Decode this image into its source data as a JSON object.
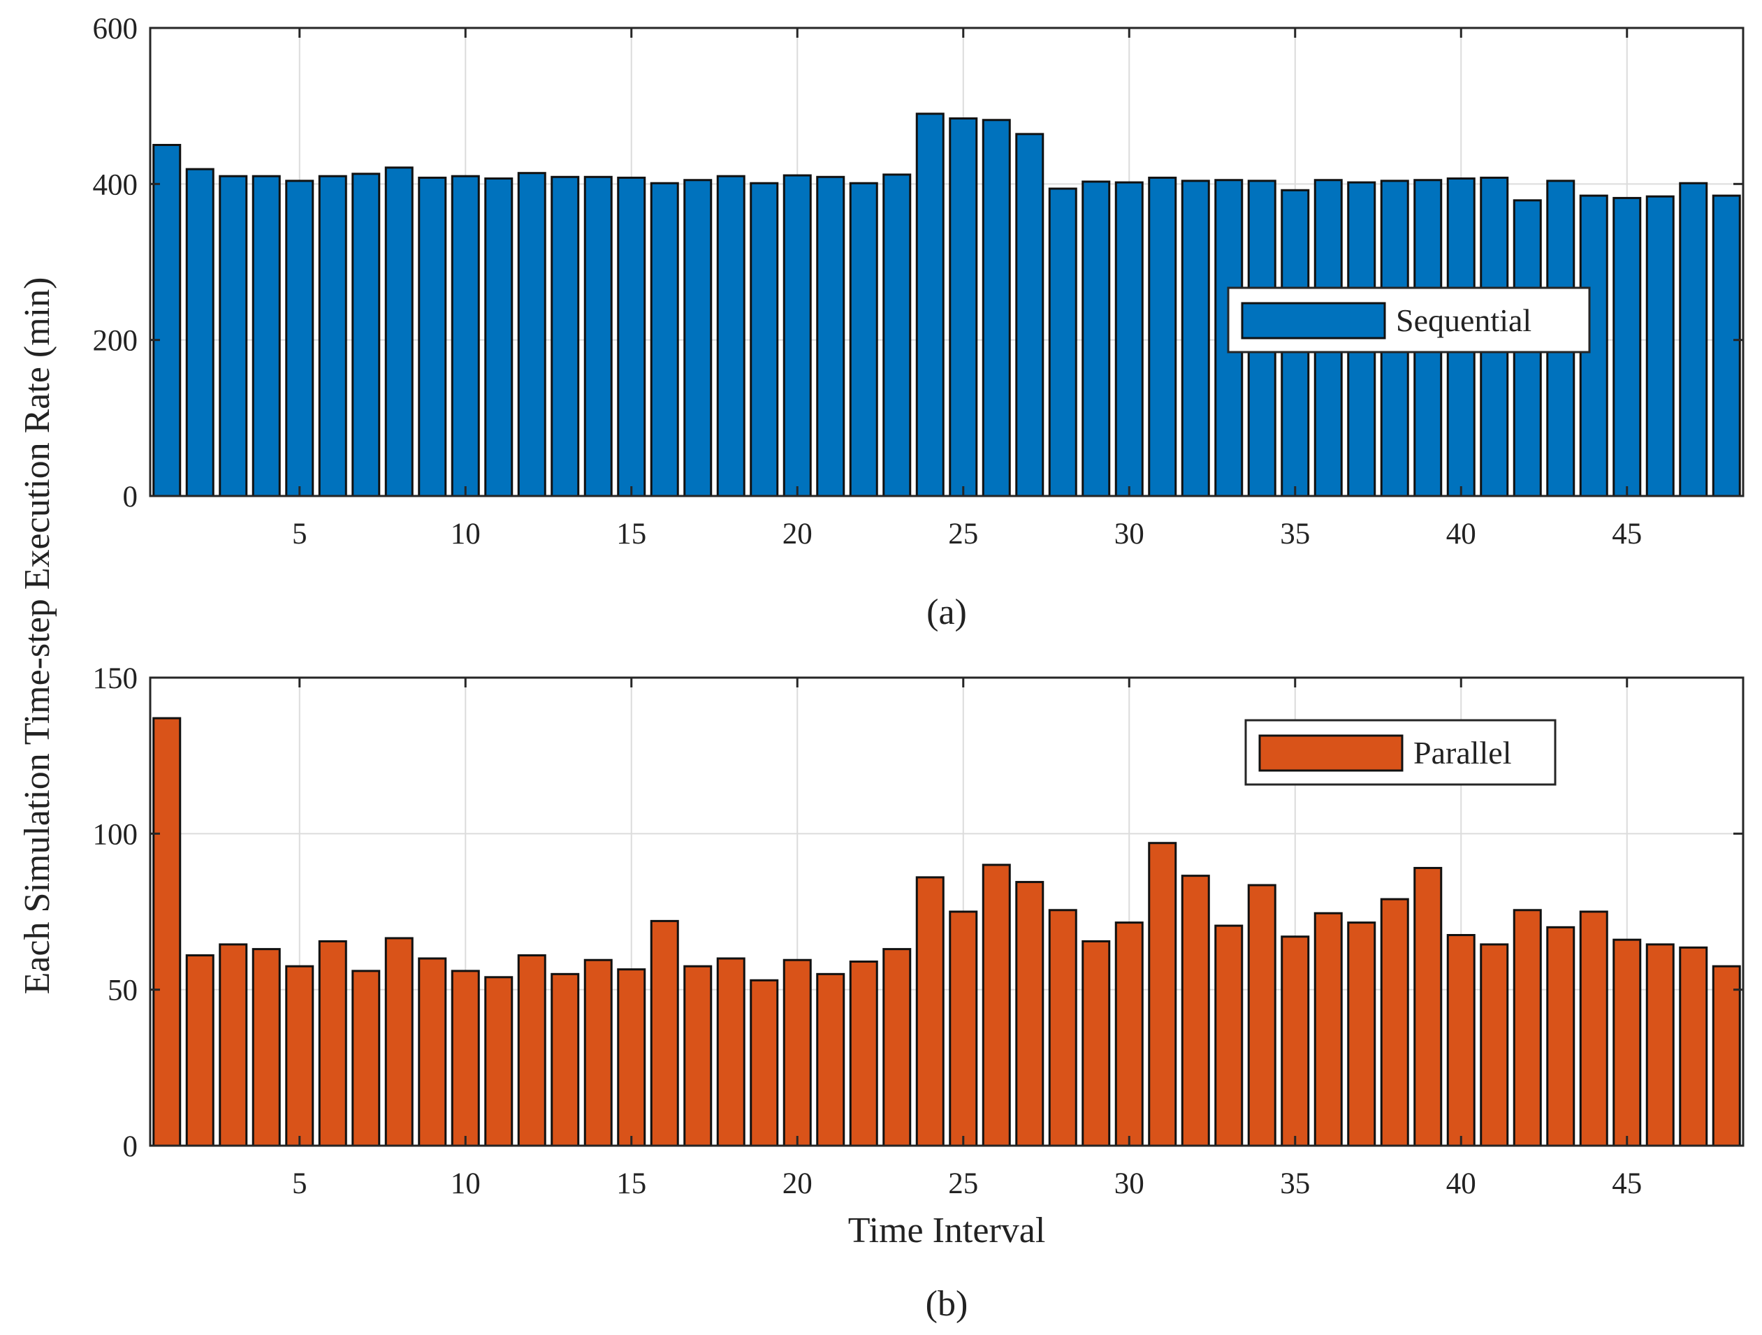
{
  "figure": {
    "shared_ylabel": "Each Simulation Time-step Execution Rate (min)"
  },
  "chart_data": [
    {
      "type": "bar",
      "caption": "(a)",
      "title": "",
      "xlabel": "",
      "ylabel": "Each Simulation Time-step Execution Rate (min)",
      "xlim": [
        0.5,
        48.5
      ],
      "ylim": [
        0,
        600
      ],
      "yticks": [
        0,
        200,
        400,
        600
      ],
      "xticks": [
        5,
        10,
        15,
        20,
        25,
        30,
        35,
        40,
        45
      ],
      "grid": true,
      "legend_position": "right",
      "x": [
        1,
        2,
        3,
        4,
        5,
        6,
        7,
        8,
        9,
        10,
        11,
        12,
        13,
        14,
        15,
        16,
        17,
        18,
        19,
        20,
        21,
        22,
        23,
        24,
        25,
        26,
        27,
        28,
        29,
        30,
        31,
        32,
        33,
        34,
        35,
        36,
        37,
        38,
        39,
        40,
        41,
        42,
        43,
        44,
        45,
        46,
        47,
        48
      ],
      "series": [
        {
          "name": "Sequential",
          "color": "#0072bd",
          "values": [
            450,
            419,
            410,
            410,
            404,
            410,
            413,
            421,
            408,
            410,
            407,
            414,
            409,
            409,
            408,
            401,
            405,
            410,
            401,
            411,
            409,
            401,
            412,
            490,
            484,
            482,
            464,
            394,
            403,
            402,
            408,
            404,
            405,
            404,
            392,
            405,
            402,
            404,
            405,
            407,
            408,
            379,
            404,
            385,
            382,
            384,
            401,
            385
          ]
        }
      ]
    },
    {
      "type": "bar",
      "caption": "(b)",
      "title": "",
      "xlabel": "Time Interval",
      "ylabel": "Each Simulation Time-step Execution Rate (min)",
      "xlim": [
        0.5,
        48.5
      ],
      "ylim": [
        0,
        150
      ],
      "yticks": [
        0,
        50,
        100,
        150
      ],
      "xticks": [
        5,
        10,
        15,
        20,
        25,
        30,
        35,
        40,
        45
      ],
      "grid": true,
      "legend_position": "top-right",
      "x": [
        1,
        2,
        3,
        4,
        5,
        6,
        7,
        8,
        9,
        10,
        11,
        12,
        13,
        14,
        15,
        16,
        17,
        18,
        19,
        20,
        21,
        22,
        23,
        24,
        25,
        26,
        27,
        28,
        29,
        30,
        31,
        32,
        33,
        34,
        35,
        36,
        37,
        38,
        39,
        40,
        41,
        42,
        43,
        44,
        45,
        46,
        47,
        48
      ],
      "series": [
        {
          "name": "Parallel",
          "color": "#d95319",
          "values": [
            137,
            61,
            64.5,
            63,
            57.5,
            65.5,
            56,
            66.5,
            60,
            56,
            54,
            61,
            55,
            59.5,
            56.5,
            72,
            57.5,
            60,
            53,
            59.5,
            55,
            59,
            63,
            86,
            75,
            90,
            84.5,
            75.5,
            65.5,
            71.5,
            97,
            86.5,
            70.5,
            83.5,
            67,
            74.5,
            71.5,
            79,
            89,
            67.5,
            64.5,
            75.5,
            70,
            75,
            66,
            64.5,
            63.5,
            57.5
          ]
        }
      ]
    }
  ]
}
